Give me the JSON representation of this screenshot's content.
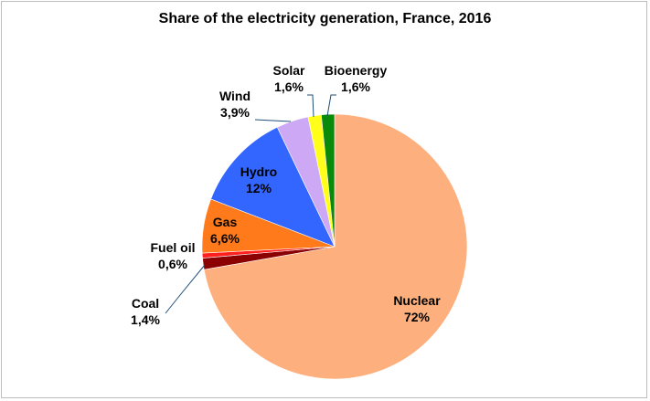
{
  "chart_data": {
    "type": "pie",
    "title": "Share of the electricity generation, France, 2016",
    "slices": [
      {
        "name": "Nuclear",
        "value": 72,
        "label": "72%",
        "color": "#FDB07E"
      },
      {
        "name": "Coal",
        "value": 1.4,
        "label": "1,4%",
        "color": "#8B0000"
      },
      {
        "name": "Fuel oil",
        "value": 0.6,
        "label": "0,6%",
        "color": "#FF1F1F"
      },
      {
        "name": "Gas",
        "value": 6.6,
        "label": "6,6%",
        "color": "#FF7A1A"
      },
      {
        "name": "Hydro",
        "value": 12,
        "label": "12%",
        "color": "#3366FF"
      },
      {
        "name": "Wind",
        "value": 3.9,
        "label": "3,9%",
        "color": "#CCA8F5"
      },
      {
        "name": "Solar",
        "value": 1.6,
        "label": "1,6%",
        "color": "#FFFF1A"
      },
      {
        "name": "Bioenergy",
        "value": 1.6,
        "label": "1,6%",
        "color": "#0A8A0A"
      }
    ]
  }
}
